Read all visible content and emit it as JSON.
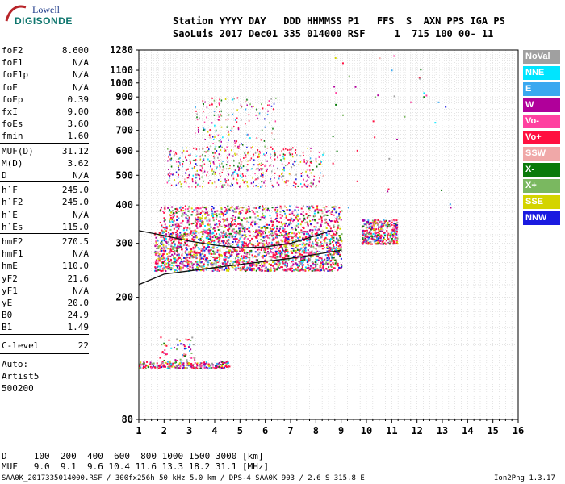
{
  "logo": {
    "top": "Lowell",
    "bottom": "DIGISONDE"
  },
  "header": {
    "line1": "Station YYYY DAY   DDD HHMMSS P1   FFS  S  AXN PPS IGA PS",
    "line2": "SaoLuis 2017 Dec01 335 014000 RSF     1  715 100 00- 11"
  },
  "params": [
    {
      "name": "foF2",
      "value": "8.600"
    },
    {
      "name": "foF1",
      "value": "N/A"
    },
    {
      "name": "foF1p",
      "value": "N/A"
    },
    {
      "name": "foE",
      "value": "N/A"
    },
    {
      "name": "foEp",
      "value": "0.39"
    },
    {
      "name": "fxI",
      "value": "9.00"
    },
    {
      "name": "foEs",
      "value": "3.60"
    },
    {
      "name": "fmin",
      "value": "1.60"
    },
    {
      "name": "MUF(D)",
      "value": "31.12"
    },
    {
      "name": "M(D)",
      "value": "3.62"
    },
    {
      "name": "D",
      "value": "N/A"
    },
    {
      "name": "h`F",
      "value": "245.0"
    },
    {
      "name": "h`F2",
      "value": "245.0"
    },
    {
      "name": "h`E",
      "value": "N/A"
    },
    {
      "name": "h`Es",
      "value": "115.0"
    },
    {
      "name": "hmF2",
      "value": "270.5"
    },
    {
      "name": "hmF1",
      "value": "N/A"
    },
    {
      "name": "hmE",
      "value": "110.0"
    },
    {
      "name": "yF2",
      "value": "21.6"
    },
    {
      "name": "yF1",
      "value": "N/A"
    },
    {
      "name": "yE",
      "value": "20.0"
    },
    {
      "name": "B0",
      "value": "24.9"
    },
    {
      "name": "B1",
      "value": "1.49"
    },
    {
      "name": "C-level",
      "value": "22"
    }
  ],
  "notes": [
    "Auto:",
    "Artist5",
    "500200"
  ],
  "legend": [
    {
      "label": "NoVal",
      "color": "#a0a0a0"
    },
    {
      "label": "NNE",
      "color": "#00e5ff"
    },
    {
      "label": "E",
      "color": "#3aa8f0"
    },
    {
      "label": "W",
      "color": "#b0009a"
    },
    {
      "label": "Vo-",
      "color": "#ff40a0"
    },
    {
      "label": "Vo+",
      "color": "#ff1040"
    },
    {
      "label": "SSW",
      "color": "#f0a8a8"
    },
    {
      "label": "X-",
      "color": "#0a7a0a"
    },
    {
      "label": "X+",
      "color": "#7ab860"
    },
    {
      "label": "SSE",
      "color": "#d4d400"
    },
    {
      "label": "NNW",
      "color": "#1a1ae0"
    }
  ],
  "bottom": {
    "d_line": "D     100  200  400  600  800 1000 1500 3000 [km]",
    "muf_line": "MUF   9.0  9.1  9.6 10.4 11.6 13.3 18.2 31.1 [MHz]"
  },
  "footer": {
    "left": "SAA0K_2017335014000.RSF / 300fx256h 50 kHz 5.0 km / DPS-4 SAA0K 903 / 2.6 S 315.8 E",
    "right": "Ion2Png 1.3.17"
  },
  "chart_data": {
    "type": "scatter",
    "title": "",
    "xlabel": "",
    "ylabel": "",
    "xlim": [
      1,
      16
    ],
    "ylim": [
      80,
      1280
    ],
    "x_ticks": [
      1,
      2,
      3,
      4,
      5,
      6,
      7,
      8,
      9,
      10,
      11,
      12,
      13,
      14,
      15,
      16
    ],
    "y_ticks": [
      80,
      200,
      300,
      400,
      500,
      600,
      700,
      800,
      900,
      1000,
      1100,
      1280
    ],
    "y_scale": "log",
    "grid": true,
    "legend_position": "right",
    "traces": [
      {
        "name": "F-layer lower trace",
        "points": [
          [
            1.0,
            220
          ],
          [
            2,
            238
          ],
          [
            3,
            244
          ],
          [
            4,
            250
          ],
          [
            5,
            256
          ],
          [
            6,
            262
          ],
          [
            7,
            268
          ],
          [
            8,
            276
          ],
          [
            9,
            285
          ]
        ]
      },
      {
        "name": "Profile curve",
        "points": [
          [
            1.0,
            330
          ],
          [
            2,
            318
          ],
          [
            3,
            305
          ],
          [
            4,
            296
          ],
          [
            5,
            290
          ],
          [
            6,
            292
          ],
          [
            7,
            300
          ],
          [
            8,
            318
          ],
          [
            8.6,
            330
          ]
        ]
      }
    ],
    "clusters": [
      {
        "name": "F region",
        "x": [
          1.6,
          9.0
        ],
        "y": [
          240,
          400
        ]
      },
      {
        "name": "F extension",
        "x": [
          9.8,
          11.2
        ],
        "y": [
          290,
          370
        ]
      },
      {
        "name": "F multiple",
        "x": [
          2.1,
          8.3
        ],
        "y": [
          460,
          700
        ]
      },
      {
        "name": "Es",
        "x": [
          1.0,
          4.6
        ],
        "y": [
          115,
          130
        ]
      }
    ]
  }
}
